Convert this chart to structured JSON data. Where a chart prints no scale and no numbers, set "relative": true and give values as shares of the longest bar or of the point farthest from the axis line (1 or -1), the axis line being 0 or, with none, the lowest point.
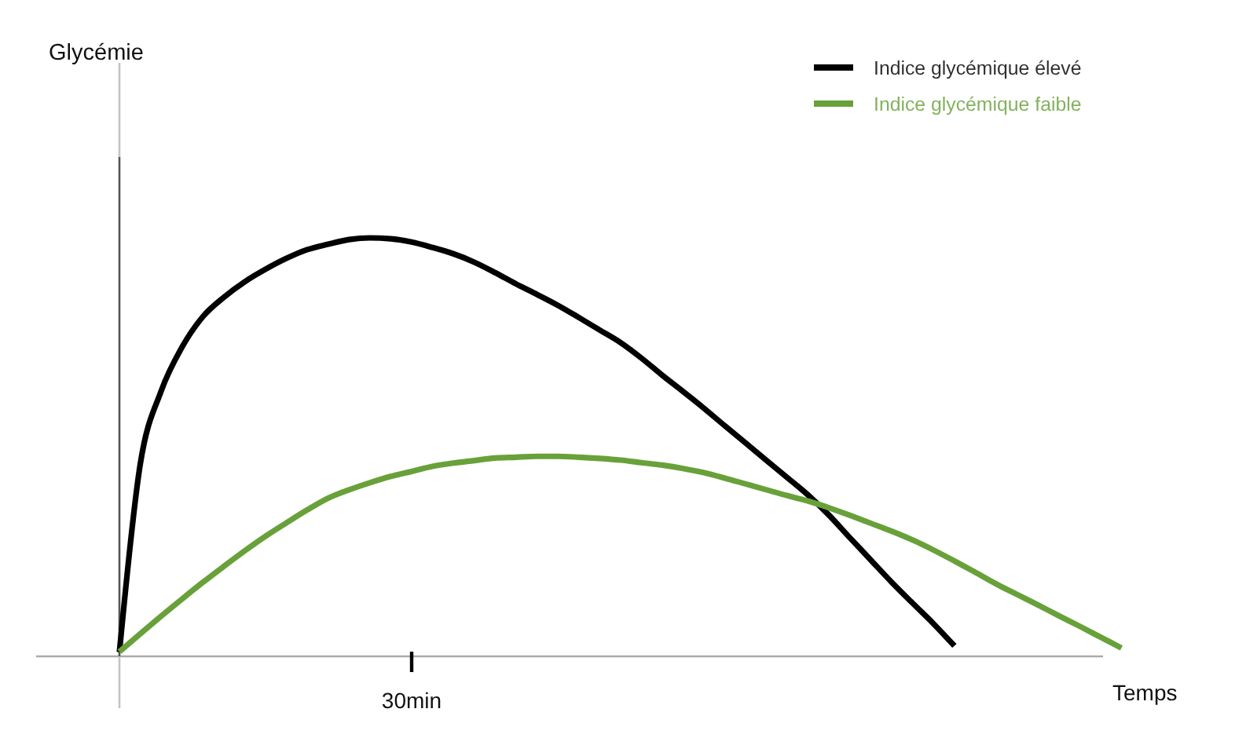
{
  "chart_data": {
    "type": "line",
    "relative": true,
    "xlabel": "Temps",
    "legend": "top right",
    "line_style": "solid",
    "annotations": [
      "Glycémie",
      "30min"
    ],
    "categories": [
      null,
      null,
      null,
      null,
      null,
      null,
      null,
      null,
      null,
      null,
      null,
      null,
      null,
      null,
      null,
      null,
      null,
      null,
      null,
      null,
      null,
      null,
      null,
      null,
      null,
      null,
      null,
      null,
      null,
      null,
      null,
      null,
      null,
      null,
      null,
      null,
      null,
      null,
      null,
      null,
      null,
      null,
      null,
      null,
      null,
      null,
      null,
      null,
      null
    ],
    "series": [
      {
        "name": "Indice glycémique élevé",
        "color": "#000000",
        "values": [
          0.01,
          0.46,
          0.634,
          0.739,
          0.812,
          0.858,
          0.895,
          0.925,
          0.951,
          0.972,
          0.985,
          0.996,
          1,
          0.998,
          0.99,
          0.977,
          0.962,
          0.942,
          0.917,
          0.89,
          0.865,
          0.839,
          0.81,
          0.78,
          0.75,
          0.713,
          0.672,
          0.633,
          0.593,
          0.551,
          0.51,
          0.468,
          0.427,
          0.385,
          0.337,
          0.283,
          0.23,
          0.177,
          0.127,
          0.078,
          0.025,
          null,
          null,
          null,
          null,
          null,
          null,
          null,
          null
        ]
      },
      {
        "name": "Indice glycémique faible",
        "color": "#68a139",
        "values": [
          0.011,
          0.054,
          0.096,
          0.137,
          0.177,
          0.215,
          0.252,
          0.287,
          0.319,
          0.35,
          0.378,
          0.398,
          0.415,
          0.43,
          0.442,
          0.454,
          0.462,
          0.468,
          0.474,
          0.476,
          0.478,
          0.478,
          0.476,
          0.473,
          0.469,
          0.463,
          0.457,
          0.449,
          0.439,
          0.426,
          0.412,
          0.398,
          0.384,
          0.371,
          0.355,
          0.337,
          0.318,
          0.299,
          0.278,
          0.254,
          0.228,
          0.201,
          0.173,
          0.148,
          0.123,
          0.097,
          0.072,
          0.046,
          0.02
        ]
      }
    ]
  }
}
